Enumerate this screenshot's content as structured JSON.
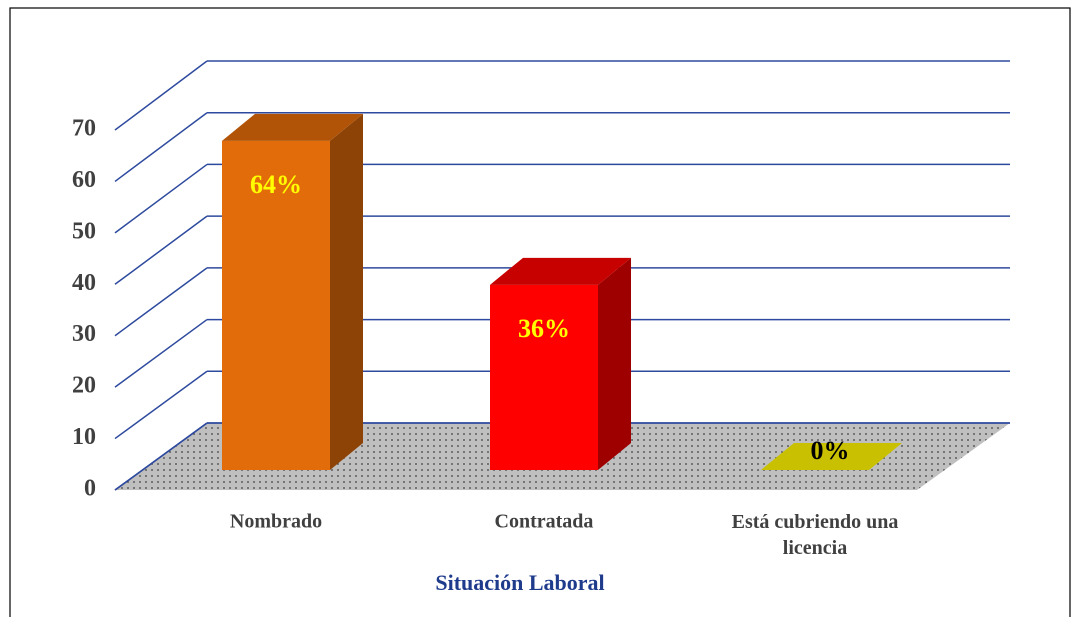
{
  "chart_data": {
    "type": "bar3d",
    "x_label": "Situación Laboral",
    "categories": [
      "Nombrado",
      "Contratada",
      "Está cubriendo una licencia"
    ],
    "values": [
      64,
      36,
      0
    ],
    "value_labels": [
      "64%",
      "36%",
      "0%"
    ],
    "colors": [
      "#e36c0a",
      "#ff0000",
      "#c8c000"
    ],
    "ylim": [
      0,
      70
    ],
    "yticks": [
      0,
      10,
      20,
      30,
      40,
      50,
      60,
      70
    ],
    "grid": true
  }
}
